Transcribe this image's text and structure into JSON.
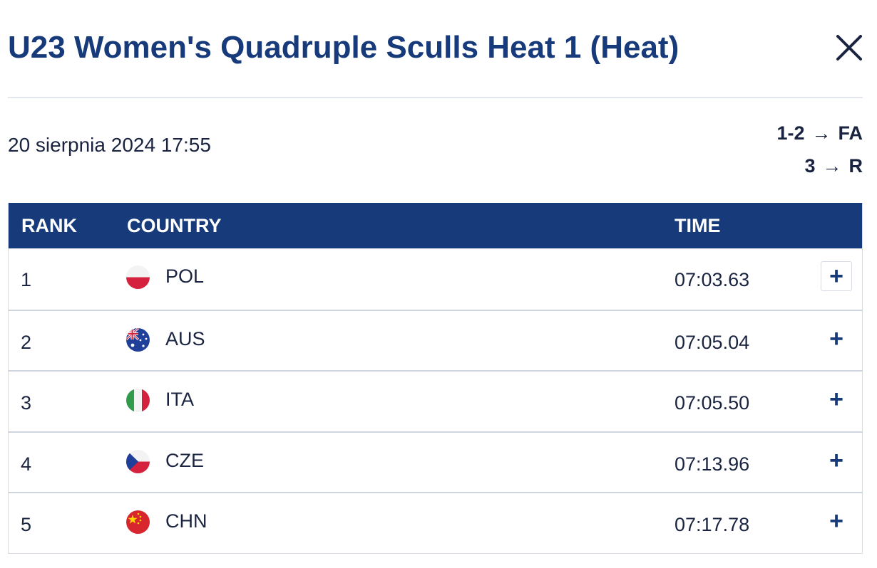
{
  "header": {
    "title": "U23 Women's Quadruple Sculls Heat 1 (Heat)",
    "close_icon": "close-icon"
  },
  "race": {
    "datetime": "20 sierpnia 2024 17:55",
    "progression": [
      {
        "places": "1-2",
        "arrow": "→",
        "target": "FA"
      },
      {
        "places": "3",
        "arrow": "→",
        "target": "R"
      }
    ]
  },
  "table": {
    "columns": {
      "rank": "RANK",
      "country": "COUNTRY",
      "time": "TIME"
    },
    "expand_label": "+",
    "rows": [
      {
        "rank": "1",
        "country": "POL",
        "time": "07:03.63",
        "flag": "poland-flag-icon"
      },
      {
        "rank": "2",
        "country": "AUS",
        "time": "07:05.04",
        "flag": "australia-flag-icon"
      },
      {
        "rank": "3",
        "country": "ITA",
        "time": "07:05.50",
        "flag": "italy-flag-icon"
      },
      {
        "rank": "4",
        "country": "CZE",
        "time": "07:13.96",
        "flag": "czechia-flag-icon"
      },
      {
        "rank": "5",
        "country": "CHN",
        "time": "07:17.78",
        "flag": "china-flag-icon"
      }
    ]
  },
  "colors": {
    "primary": "#173a7a",
    "text": "#1a2440",
    "divider": "#cfd5de"
  }
}
